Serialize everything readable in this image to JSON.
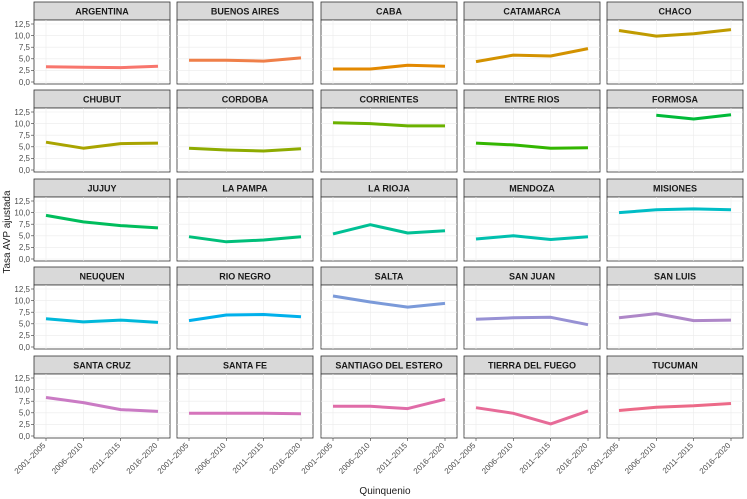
{
  "chart_data": {
    "type": "line",
    "facet_layout": "5 columns x 5 rows",
    "xlabel": "Quinquenio",
    "ylabel": "Tasa AVP ajustada",
    "categories": [
      "2001–2005",
      "2006–2010",
      "2011–2015",
      "2016–2020"
    ],
    "ylim": [
      0,
      12.5
    ],
    "yticks": [
      "0,0",
      "2,5",
      "5,0",
      "7,5",
      "10,0",
      "12,5"
    ],
    "ytick_values": [
      0,
      2.5,
      5,
      7.5,
      10,
      12.5
    ],
    "grid": true,
    "legend": "none",
    "panels": [
      {
        "name": "ARGENTINA",
        "color": "#F8766D",
        "values": [
          3.3,
          3.2,
          3.1,
          3.4
        ]
      },
      {
        "name": "BUENOS AIRES",
        "color": "#EF7F49",
        "values": [
          4.7,
          4.7,
          4.5,
          5.2
        ]
      },
      {
        "name": "CABA",
        "color": "#E38900",
        "values": [
          2.8,
          2.8,
          3.6,
          3.4
        ]
      },
      {
        "name": "CATAMARCA",
        "color": "#D39200",
        "values": [
          4.4,
          5.8,
          5.6,
          7.2
        ]
      },
      {
        "name": "CHACO",
        "color": "#C09B00",
        "values": [
          11.1,
          9.9,
          10.4,
          11.3
        ]
      },
      {
        "name": "CHUBUT",
        "color": "#A9A400",
        "values": [
          6.0,
          4.7,
          5.7,
          5.8
        ]
      },
      {
        "name": "CORDOBA",
        "color": "#8EAB00",
        "values": [
          4.7,
          4.3,
          4.1,
          4.6
        ]
      },
      {
        "name": "CORRIENTES",
        "color": "#6BB100",
        "values": [
          10.2,
          10.0,
          9.5,
          9.5
        ]
      },
      {
        "name": "ENTRE RIOS",
        "color": "#33B600",
        "values": [
          5.8,
          5.4,
          4.7,
          4.8
        ]
      },
      {
        "name": "FORMOSA",
        "color": "#00BA38",
        "values": [
          null,
          11.8,
          11.0,
          11.9
        ]
      },
      {
        "name": "JUJUY",
        "color": "#00BD5C",
        "values": [
          9.4,
          8.0,
          7.2,
          6.7
        ]
      },
      {
        "name": "LA PAMPA",
        "color": "#00BF7A",
        "values": [
          4.8,
          3.7,
          4.1,
          4.8
        ]
      },
      {
        "name": "LA RIOJA",
        "color": "#00C095",
        "values": [
          5.4,
          7.4,
          5.6,
          6.1
        ]
      },
      {
        "name": "MENDOZA",
        "color": "#00C0AF",
        "values": [
          4.3,
          5.0,
          4.2,
          4.8
        ]
      },
      {
        "name": "MISIONES",
        "color": "#00BDC6",
        "values": [
          10.0,
          10.6,
          10.8,
          10.6
        ]
      },
      {
        "name": "NEUQUEN",
        "color": "#00B8DA",
        "values": [
          6.1,
          5.4,
          5.8,
          5.3
        ]
      },
      {
        "name": "RIO NEGRO",
        "color": "#00B0EB",
        "values": [
          5.7,
          6.9,
          7.0,
          6.5
        ]
      },
      {
        "name": "SALTA",
        "color": "#7B9AD9",
        "values": [
          11.0,
          9.7,
          8.6,
          9.4
        ]
      },
      {
        "name": "SAN JUAN",
        "color": "#9791D4",
        "values": [
          6.0,
          6.3,
          6.4,
          4.8
        ]
      },
      {
        "name": "SAN LUIS",
        "color": "#AE87C8",
        "values": [
          6.3,
          7.2,
          5.7,
          5.8
        ]
      },
      {
        "name": "SANTA CRUZ",
        "color": "#CA7BC4",
        "values": [
          8.3,
          7.2,
          5.7,
          5.3
        ]
      },
      {
        "name": "SANTA FE",
        "color": "#D574BB",
        "values": [
          4.9,
          4.9,
          4.9,
          4.8
        ]
      },
      {
        "name": "SANTIAGO DEL ESTERO",
        "color": "#E06CA8",
        "values": [
          6.4,
          6.4,
          5.9,
          7.9
        ]
      },
      {
        "name": "TIERRA DEL FUEGO",
        "color": "#E76B98",
        "values": [
          6.1,
          4.9,
          2.6,
          5.4
        ]
      },
      {
        "name": "TUCUMAN",
        "color": "#EC6A88",
        "values": [
          5.5,
          6.2,
          6.5,
          7.0
        ]
      }
    ]
  }
}
